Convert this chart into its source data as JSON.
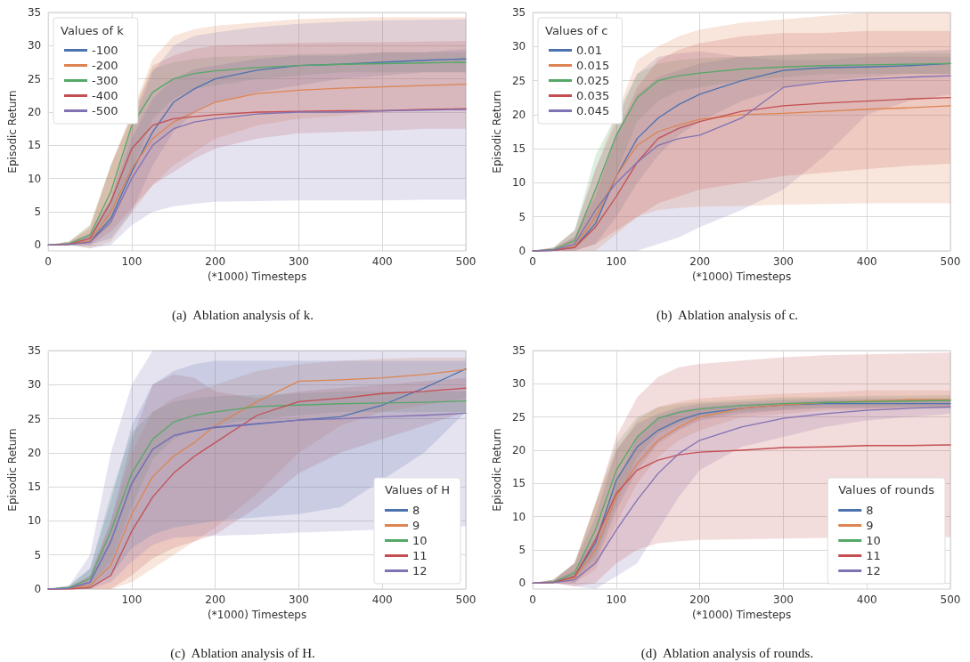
{
  "chart_data": [
    {
      "type": "line",
      "title": "(a)  Ablation analysis of k.",
      "xlabel": "(*1000) Timesteps",
      "ylabel": "Episodic Return",
      "legend_title": "Values of k",
      "legend": "top left",
      "grid": true,
      "xlim": [
        0,
        500
      ],
      "xticks": [
        0,
        100,
        200,
        300,
        400,
        500
      ],
      "ylim": [
        -0.9,
        35
      ],
      "yticks": [
        0,
        5,
        10,
        15,
        20,
        25,
        30,
        35
      ],
      "x": [
        0,
        25,
        50,
        75,
        100,
        125,
        150,
        175,
        200,
        250,
        300,
        350,
        400,
        450,
        500
      ],
      "series": [
        {
          "name": "-100",
          "color": "#4c72b0",
          "values": [
            0,
            0.1,
            0.5,
            4,
            11,
            17,
            21.5,
            23.5,
            25,
            26.3,
            27,
            27.2,
            27.5,
            27.8,
            28
          ],
          "lower": [
            0,
            0,
            0,
            1,
            5,
            12,
            17,
            20,
            21.5,
            23,
            24,
            25,
            25.5,
            26,
            26
          ],
          "upper": [
            0,
            0.3,
            1.5,
            7,
            16,
            22,
            25,
            26.5,
            27,
            28,
            28.5,
            28.5,
            29,
            29,
            29.5
          ]
        },
        {
          "name": "-200",
          "color": "#dd8452",
          "values": [
            0,
            0.1,
            0.6,
            5,
            11.5,
            16,
            18.5,
            20,
            21.5,
            22.8,
            23.3,
            23.6,
            23.8,
            24,
            24.2
          ],
          "lower": [
            0,
            0,
            -0.5,
            0.5,
            null,
            9,
            12,
            14,
            16,
            18,
            19,
            19.5,
            20,
            20.5,
            20.5
          ],
          "upper": [
            0,
            0.5,
            3,
            12,
            null,
            28,
            31.5,
            32.5,
            33,
            33.5,
            34,
            34.2,
            34.3,
            34.3,
            34.3
          ]
        },
        {
          "name": "-300",
          "color": "#55a868",
          "values": [
            0,
            0.2,
            1.5,
            8,
            18,
            23,
            25,
            25.8,
            26.2,
            26.7,
            27,
            27.2,
            27.3,
            27.4,
            27.5
          ],
          "lower": [
            0,
            0,
            0.5,
            3,
            null,
            19,
            22,
            23.5,
            24,
            25,
            25.5,
            26,
            26,
            26,
            26
          ],
          "upper": [
            0,
            0.5,
            3,
            12,
            null,
            26.5,
            27.5,
            28,
            28.3,
            28.5,
            28.7,
            28.8,
            29,
            29,
            29
          ]
        },
        {
          "name": "-400",
          "color": "#c44e52",
          "values": [
            0,
            0.1,
            1,
            6.5,
            14.5,
            18,
            19,
            19.3,
            19.6,
            20,
            20.1,
            20.2,
            20.2,
            20.4,
            20.5
          ],
          "lower": [
            0,
            0,
            0,
            2,
            null,
            9,
            11,
            13,
            14.5,
            16,
            16.8,
            17,
            17.2,
            17.5,
            17.5
          ],
          "upper": [
            0,
            0.5,
            2.5,
            12,
            null,
            27,
            28.5,
            29.5,
            30,
            30.2,
            30.4,
            30.5,
            30.5,
            30.6,
            30.7
          ]
        },
        {
          "name": "-500",
          "color": "#8172b3",
          "values": [
            0,
            0.1,
            0.4,
            3.5,
            10,
            15,
            17.5,
            18.5,
            19,
            19.7,
            20,
            20,
            20.2,
            20.3,
            20.4
          ],
          "lower": [
            0,
            0,
            -0.5,
            0,
            3,
            5,
            5.8,
            6.2,
            6.5,
            6.6,
            6.7,
            6.7,
            6.7,
            6.8,
            6.8
          ],
          "upper": [
            0,
            0.4,
            1.8,
            7,
            18,
            26,
            30,
            31.5,
            32,
            32.8,
            33.3,
            33.6,
            33.8,
            33.9,
            34
          ]
        }
      ]
    },
    {
      "type": "line",
      "title": "(b)  Ablation analysis of c.",
      "xlabel": "(*1000) Timesteps",
      "ylabel": "Episodic Return",
      "legend_title": "Values of c",
      "legend": "top left",
      "grid": true,
      "xlim": [
        0,
        500
      ],
      "xticks": [
        0,
        100,
        200,
        300,
        400,
        500
      ],
      "ylim": [
        0,
        35
      ],
      "yticks": [
        0,
        5,
        10,
        15,
        20,
        25,
        30,
        35
      ],
      "x": [
        0,
        25,
        50,
        75,
        100,
        125,
        150,
        175,
        200,
        250,
        300,
        350,
        400,
        450,
        500
      ],
      "series": [
        {
          "name": "0.01",
          "color": "#4c72b0",
          "values": [
            0,
            0.1,
            0.5,
            4,
            11,
            16.5,
            19.5,
            21.5,
            23,
            25,
            26.5,
            26.9,
            27,
            27.2,
            27.5
          ],
          "lower": [
            0,
            0,
            0,
            1,
            5,
            10,
            14,
            17,
            19,
            22,
            24,
            25,
            25.5,
            26,
            26
          ],
          "upper": [
            0,
            0.3,
            2,
            8,
            17,
            23,
            25.5,
            26.5,
            27.5,
            28.5,
            28.8,
            29,
            29,
            29.3,
            29.5
          ]
        },
        {
          "name": "0.015",
          "color": "#dd8452",
          "values": [
            0,
            0.1,
            0.6,
            5,
            11,
            15.5,
            17.5,
            18.5,
            19.3,
            20,
            20.2,
            20.5,
            20.8,
            21,
            21.3
          ],
          "lower": [
            0,
            0,
            0,
            0,
            null,
            5,
            6,
            6.3,
            6.5,
            6.6,
            6.8,
            6.9,
            7,
            7,
            7
          ],
          "upper": [
            0,
            0.5,
            3,
            12,
            null,
            28,
            30,
            31.5,
            32.5,
            33.5,
            34,
            34.5,
            35,
            35,
            35
          ]
        },
        {
          "name": "0.025",
          "color": "#55a868",
          "values": [
            0,
            0.2,
            1.5,
            9,
            17,
            22.5,
            25,
            25.7,
            26.1,
            26.7,
            27,
            27.2,
            27.3,
            27.4,
            27.5
          ],
          "lower": [
            0,
            0,
            0.5,
            4,
            null,
            19,
            22,
            23.5,
            24,
            25,
            25.5,
            26,
            26,
            26,
            26
          ],
          "upper": [
            0,
            0.5,
            3,
            14,
            null,
            26,
            27.5,
            28,
            28.3,
            28.5,
            28.7,
            29,
            29,
            29,
            29
          ]
        },
        {
          "name": "0.035",
          "color": "#c44e52",
          "values": [
            0,
            0.1,
            0.5,
            3.5,
            8,
            13,
            16.5,
            18,
            19,
            20.5,
            21.3,
            21.7,
            22,
            22.3,
            22.5
          ],
          "lower": [
            0,
            0,
            0,
            1,
            3,
            5,
            7,
            8,
            9,
            10,
            11,
            11.5,
            12,
            12.5,
            12.8
          ],
          "upper": [
            0,
            0.5,
            2,
            9,
            17,
            24,
            28,
            29.5,
            30.5,
            31.5,
            32,
            32,
            32.3,
            32.3,
            32.3
          ]
        },
        {
          "name": "0.045",
          "color": "#8172b3",
          "values": [
            0,
            0.1,
            1,
            6,
            10,
            13,
            15.5,
            16.5,
            17,
            19.5,
            24,
            24.8,
            25.2,
            25.5,
            25.7
          ],
          "lower": [
            0,
            0,
            0,
            0,
            null,
            0,
            1,
            2,
            3.5,
            6,
            9,
            14,
            20,
            22,
            23
          ],
          "upper": [
            0,
            0.5,
            3,
            12,
            null,
            26,
            28.5,
            29,
            29.3,
            28.5,
            28,
            28,
            28.5,
            28.5,
            28.5
          ]
        }
      ]
    },
    {
      "type": "line",
      "title": "(c)  Ablation analysis of H.",
      "xlabel": "(*1000) Timesteps",
      "ylabel": "Episodic Return",
      "legend_title": "Values of H",
      "legend": "bottom right",
      "grid": true,
      "xlim": [
        0,
        500
      ],
      "xticks": [
        100,
        200,
        300,
        400,
        500
      ],
      "ylim": [
        0,
        35
      ],
      "yticks": [
        0,
        5,
        10,
        15,
        20,
        25,
        30,
        35
      ],
      "x": [
        0,
        25,
        50,
        75,
        100,
        125,
        150,
        175,
        200,
        250,
        300,
        350,
        400,
        450,
        500
      ],
      "series": [
        {
          "name": "8",
          "color": "#4c72b0",
          "values": [
            0,
            0.1,
            1,
            7,
            15.5,
            20.5,
            22.5,
            23.2,
            23.7,
            24.2,
            24.8,
            25.3,
            27,
            29.5,
            32.3
          ],
          "lower": [
            0,
            0,
            0,
            2,
            6,
            8,
            9,
            9.5,
            10,
            10.5,
            11,
            12,
            null,
            20,
            26
          ],
          "upper": [
            0,
            0.5,
            3,
            13,
            24,
            30,
            32,
            33,
            33.5,
            33.5,
            33.5,
            33.5,
            null,
            33.5,
            33.5
          ]
        },
        {
          "name": "9",
          "color": "#dd8452",
          "values": [
            0,
            0.1,
            0.5,
            3.5,
            11,
            16.5,
            19.5,
            21.5,
            24,
            27.5,
            30.5,
            30.7,
            31,
            31.5,
            32.2
          ],
          "lower": [
            0,
            0,
            0,
            0,
            1,
            3,
            5,
            7,
            9,
            14,
            20,
            24,
            26,
            27,
            28
          ],
          "upper": [
            0,
            0.3,
            2,
            10,
            20,
            26,
            28,
            29,
            30,
            32,
            33,
            33.5,
            33.8,
            34,
            34
          ]
        },
        {
          "name": "10",
          "color": "#55a868",
          "values": [
            0,
            0.2,
            1.5,
            8.5,
            17,
            22,
            24.5,
            25.5,
            26,
            26.8,
            27,
            27.2,
            27.3,
            27.4,
            27.6
          ],
          "lower": [
            0,
            0,
            0.5,
            4,
            12,
            19,
            22,
            23.5,
            24,
            25,
            25.5,
            26,
            26,
            26,
            26
          ],
          "upper": [
            0,
            0.5,
            3,
            14,
            23,
            26,
            27.5,
            28,
            28.3,
            28.5,
            28.7,
            29,
            29,
            29,
            29
          ]
        },
        {
          "name": "11",
          "color": "#c44e52",
          "values": [
            0,
            0,
            0.2,
            2,
            8.5,
            13.5,
            17,
            19.5,
            21.5,
            25.5,
            27.5,
            28,
            28.7,
            29,
            29.5
          ],
          "lower": [
            0,
            0,
            0,
            0,
            2,
            4.5,
            6,
            7,
            8,
            12,
            17,
            20,
            22,
            24,
            26
          ],
          "upper": [
            0,
            0.3,
            2,
            10,
            22,
            30,
            31.5,
            31,
            29,
            28,
            29,
            29.5,
            30,
            30.5,
            31
          ]
        },
        {
          "name": "12",
          "color": "#8172b3",
          "values": [
            0,
            0.1,
            1,
            7,
            15.5,
            20.5,
            22.5,
            23.3,
            23.8,
            24.3,
            24.8,
            25,
            25.3,
            25.5,
            25.8
          ],
          "lower": [
            0,
            0,
            0,
            1,
            4,
            6.5,
            7.5,
            7.7,
            7.8,
            8,
            8.3,
            8.5,
            null,
            null,
            9.2
          ],
          "upper": [
            0,
            0.5,
            5,
            20,
            30,
            35,
            35,
            35,
            35,
            35,
            35,
            35,
            null,
            null,
            35
          ]
        }
      ]
    },
    {
      "type": "line",
      "title": "(d)  Ablation analysis of rounds.",
      "xlabel": "(*1000) Timesteps",
      "ylabel": "Episodic Return",
      "legend_title": "Values of rounds",
      "legend": "bottom right",
      "grid": true,
      "xlim": [
        0,
        500
      ],
      "xticks": [
        0,
        100,
        200,
        300,
        400,
        500
      ],
      "ylim": [
        -0.9,
        35
      ],
      "yticks": [
        0,
        5,
        10,
        15,
        20,
        25,
        30,
        35
      ],
      "x": [
        0,
        25,
        50,
        75,
        100,
        125,
        150,
        175,
        200,
        250,
        300,
        350,
        400,
        450,
        500
      ],
      "series": [
        {
          "name": "8",
          "color": "#4c72b0",
          "values": [
            0,
            0.1,
            1,
            6,
            15.5,
            20.5,
            23,
            24.5,
            25.5,
            26.3,
            26.8,
            27,
            27,
            27,
            27
          ],
          "lower": [
            0,
            0,
            0,
            3,
            11,
            17,
            21,
            23,
            24.5,
            25.5,
            26,
            26.3,
            26.3,
            26.3,
            26.3
          ],
          "upper": [
            0,
            0.5,
            3,
            10,
            20,
            24,
            25.5,
            26.5,
            27,
            27.3,
            27.6,
            27.8,
            27.8,
            27.8,
            27.8
          ]
        },
        {
          "name": "9",
          "color": "#dd8452",
          "values": [
            0,
            0.1,
            0.8,
            5,
            13,
            18,
            21.5,
            23.5,
            25,
            26.3,
            26.8,
            27.2,
            27.4,
            27.6,
            27.6
          ],
          "lower": [
            0,
            0,
            0,
            2,
            9,
            15,
            19,
            21.5,
            23,
            25,
            25.5,
            26,
            26,
            26.5,
            26.5
          ],
          "upper": [
            0,
            0.5,
            3,
            12,
            20,
            24.5,
            26.5,
            27.3,
            27.8,
            28.2,
            28.5,
            28.7,
            29,
            29,
            29
          ]
        },
        {
          "name": "10",
          "color": "#55a868",
          "values": [
            0,
            0.2,
            1.5,
            8,
            17,
            22,
            24.8,
            25.7,
            26.2,
            26.7,
            27,
            27.2,
            27.3,
            27.4,
            27.5
          ],
          "lower": [
            0,
            0,
            0.5,
            4,
            12,
            19,
            22.5,
            24,
            25,
            25.8,
            26.2,
            26.5,
            26.5,
            26.5,
            26.5
          ],
          "upper": [
            0,
            0.5,
            3,
            12,
            21,
            25,
            26.5,
            27,
            27.3,
            27.6,
            28,
            28,
            28.2,
            28.2,
            28.3
          ]
        },
        {
          "name": "11",
          "color": "#c44e52",
          "values": [
            0,
            0.1,
            1,
            6.5,
            13.5,
            17,
            18.5,
            19.3,
            19.7,
            20,
            20.4,
            20.5,
            20.7,
            20.7,
            20.8
          ],
          "lower": [
            0,
            0,
            -0.5,
            0,
            3,
            5,
            6,
            6.3,
            6.5,
            6.6,
            6.7,
            6.8,
            null,
            null,
            6.9
          ],
          "upper": [
            0,
            0.5,
            3,
            12,
            22,
            28,
            31,
            32.5,
            33,
            33.5,
            34,
            34.3,
            null,
            null,
            34.7
          ]
        },
        {
          "name": "12",
          "color": "#8172b3",
          "values": [
            0,
            0.1,
            0.5,
            3,
            8,
            12.5,
            16.5,
            19.5,
            21.5,
            23.5,
            24.8,
            25.5,
            26,
            26.3,
            26.5
          ],
          "lower": [
            0,
            0,
            -0.5,
            -0.9,
            1,
            3,
            8,
            13,
            17,
            20.5,
            22,
            23.5,
            24.5,
            25,
            25.5
          ],
          "upper": [
            0,
            0.3,
            2,
            7,
            15,
            22,
            25,
            26,
            26.5,
            27,
            27.2,
            27.5,
            27.5,
            27.5,
            27.5
          ]
        }
      ]
    }
  ]
}
